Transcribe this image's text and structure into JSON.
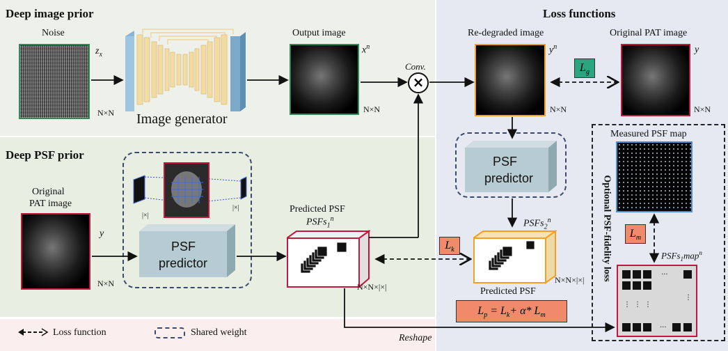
{
  "panels": {
    "deep_image_prior": "Deep image prior",
    "deep_psf_prior": "Deep PSF prior",
    "loss_functions": "Loss functions",
    "optional_loss": "Optional PSF-fidelity loss"
  },
  "image_prior": {
    "noise_label": "Noise",
    "zx": "z",
    "zx_sub": "x",
    "nxn": "N×N",
    "generator_label": "Image generator",
    "output_label": "Output image",
    "xn": "x",
    "xn_sup": "n",
    "nxn2": "N×N"
  },
  "conv": {
    "label": "Conv."
  },
  "loss": {
    "redegraded_label": "Re-degraded image",
    "yn": "y",
    "yn_sup": "n",
    "nxn_a": "N×N",
    "original_label": "Original PAT image",
    "y": "y",
    "nxn_b": "N×N",
    "lg": "L",
    "lg_sub": "g",
    "psf_predictor": [
      "PSF",
      "predictor"
    ],
    "psfs2": "PSFs",
    "psfs2_sub": "2",
    "psfs2_sup": "n",
    "predicted_psf": "Predicted PSF",
    "nxnx11": "N×N×|×|",
    "lk": "L",
    "lk_sub": "k",
    "lp_formula": "L",
    "lp_sub": "p",
    "lp_rest": " = L",
    "lp_k": "k",
    "lp_plus": "+ α* L",
    "lp_m": "m",
    "measured_label": "Measured PSF map",
    "lm": "L",
    "lm_sub": "m",
    "psfs1map": "PSFs",
    "psfs1map_sub": "1",
    "psfs1map_rest": "map",
    "psfs1map_sup": "n",
    "dots": "···"
  },
  "psf_prior": {
    "orig_label_1": "Original",
    "orig_label_2": "PAT image",
    "y": "y",
    "nxn": "N×N",
    "one_a": "|×|",
    "one_b": "|×|",
    "psf_predictor": [
      "PSF",
      "predictor"
    ],
    "predicted_label": "Predicted PSF",
    "psfs1": "PSFs",
    "psfs1_sub": "1",
    "psfs1_sup": "n",
    "nxnx11": "N×N×|×|"
  },
  "legend": {
    "loss_function": "Loss function",
    "shared_weight": "Shared weight",
    "reshape": "Reshape"
  },
  "colors": {
    "green_panel": "#eef1ea",
    "blue_panel": "#e6e9f1",
    "psf_prior_panel": "#e9eee2",
    "predictor_fill": "#b7ccd2",
    "lg_fill": "#2aa57f",
    "lk_fill": "#f08a6a",
    "teal_border": "#2e8b57",
    "red_border": "#c0193b",
    "orange_border": "#f2a01f",
    "blue_border": "#4b8fd1"
  }
}
